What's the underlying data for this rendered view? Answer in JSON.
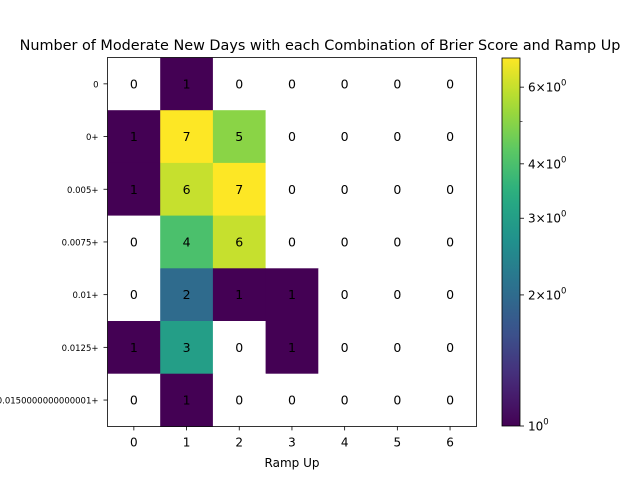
{
  "chart_data": {
    "type": "heatmap",
    "title": "Number of Moderate New Days with each Combination of Brier Score and Ramp Up",
    "xlabel": "Ramp Up",
    "ylabel": "",
    "x_categories": [
      "0",
      "1",
      "2",
      "3",
      "4",
      "5",
      "6"
    ],
    "y_categories": [
      "0",
      "0+",
      "0.005+",
      "0.0075+",
      "0.01+",
      "0.0125+",
      "0.0150000000000001+"
    ],
    "values": [
      [
        0,
        1,
        0,
        0,
        0,
        0,
        0
      ],
      [
        1,
        7,
        5,
        0,
        0,
        0,
        0
      ],
      [
        1,
        6,
        7,
        0,
        0,
        0,
        0
      ],
      [
        0,
        4,
        6,
        0,
        0,
        0,
        0
      ],
      [
        0,
        2,
        1,
        1,
        0,
        0,
        0
      ],
      [
        1,
        3,
        0,
        1,
        0,
        0,
        0
      ],
      [
        0,
        1,
        0,
        0,
        0,
        0,
        0
      ]
    ],
    "color_scale": "log",
    "colormap": "viridis",
    "zero_color": "#ffffff",
    "colorbar": {
      "range": [
        1,
        7
      ],
      "major_ticks": [
        {
          "value": 1,
          "base": "10",
          "exp": "0",
          "coef": ""
        },
        {
          "value": 2,
          "base": "10",
          "exp": "0",
          "coef": "2×"
        },
        {
          "value": 3,
          "base": "10",
          "exp": "0",
          "coef": "3×"
        },
        {
          "value": 4,
          "base": "10",
          "exp": "0",
          "coef": "4×"
        },
        {
          "value": 6,
          "base": "10",
          "exp": "0",
          "coef": "6×"
        }
      ],
      "minor_ticks": [
        5
      ]
    }
  }
}
